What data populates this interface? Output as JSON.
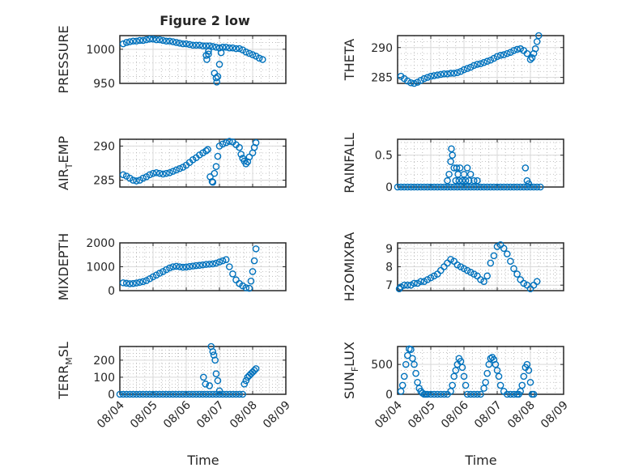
{
  "figure": {
    "title": "Figure 2 low",
    "xlabel": "Time"
  },
  "colors": {
    "series": "#0072BD",
    "axes": "#262626"
  },
  "chart_data": [
    {
      "type": "scatter",
      "ylabel": "PRESSURE",
      "ylim": [
        950,
        1020
      ],
      "yticks": [
        950,
        1000
      ],
      "xlim": [
        "08/04",
        "08/09"
      ],
      "xticks": [
        "08/04",
        "08/05",
        "08/06",
        "08/07",
        "08/08",
        "08/09"
      ],
      "grid": true,
      "minor_grid": true,
      "x": [
        4.1,
        4.2,
        4.3,
        4.4,
        4.5,
        4.6,
        4.7,
        4.8,
        4.9,
        5.0,
        5.1,
        5.2,
        5.3,
        5.4,
        5.5,
        5.6,
        5.7,
        5.8,
        5.9,
        6.0,
        6.1,
        6.2,
        6.3,
        6.4,
        6.5,
        6.6,
        6.7,
        6.8,
        6.9,
        7.0,
        7.1,
        7.2,
        7.3,
        7.4,
        7.5,
        7.6,
        7.7,
        7.8,
        7.9,
        8.0,
        8.1,
        8.2,
        8.3,
        6.6,
        6.62,
        6.67,
        6.67,
        6.85,
        6.9,
        6.92,
        6.95,
        7.0,
        7.05,
        7.1
      ],
      "y": [
        1008,
        1010,
        1011,
        1012,
        1012,
        1013,
        1013,
        1014,
        1015,
        1015,
        1014,
        1014,
        1013,
        1012,
        1012,
        1011,
        1010,
        1009,
        1008,
        1008,
        1007,
        1006,
        1006,
        1006,
        1005,
        1005,
        1005,
        1004,
        1003,
        1002,
        1003,
        1003,
        1002,
        1002,
        1001,
        1001,
        999,
        996,
        994,
        992,
        990,
        987,
        985,
        991,
        985,
        997,
        993,
        965,
        958,
        952,
        960,
        978,
        995,
        1003
      ]
    },
    {
      "type": "scatter",
      "ylabel": "THETA",
      "ylim": [
        284,
        292
      ],
      "yticks": [
        285,
        290
      ],
      "xlim": [
        "08/04",
        "08/09"
      ],
      "xticks": [
        "08/04",
        "08/05",
        "08/06",
        "08/07",
        "08/08",
        "08/09"
      ],
      "grid": true,
      "minor_grid": true,
      "x": [
        4.1,
        4.2,
        4.3,
        4.4,
        4.5,
        4.6,
        4.7,
        4.8,
        4.9,
        5.0,
        5.1,
        5.2,
        5.3,
        5.4,
        5.5,
        5.6,
        5.7,
        5.8,
        5.9,
        6.0,
        6.1,
        6.2,
        6.3,
        6.4,
        6.5,
        6.6,
        6.7,
        6.8,
        6.9,
        7.0,
        7.1,
        7.2,
        7.3,
        7.4,
        7.5,
        7.6,
        7.7,
        7.8,
        7.9,
        8.0,
        8.05,
        8.1,
        8.15,
        8.2,
        8.25
      ],
      "y": [
        285.2,
        284.8,
        284.4,
        284.1,
        284.0,
        284.2,
        284.5,
        284.8,
        285.0,
        285.2,
        285.3,
        285.4,
        285.5,
        285.6,
        285.6,
        285.7,
        285.7,
        285.8,
        286.0,
        286.3,
        286.5,
        286.7,
        287.0,
        287.2,
        287.3,
        287.5,
        287.7,
        287.9,
        288.2,
        288.5,
        288.7,
        288.8,
        289.0,
        289.2,
        289.5,
        289.7,
        289.8,
        289.5,
        289.0,
        288.0,
        288.3,
        289.0,
        289.8,
        291.0,
        292.0
      ]
    },
    {
      "type": "scatter",
      "ylabel": "AIR_TEMP",
      "ylim": [
        284,
        291
      ],
      "yticks": [
        285,
        290
      ],
      "xlim": [
        "08/04",
        "08/09"
      ],
      "xticks": [
        "08/04",
        "08/05",
        "08/06",
        "08/07",
        "08/08",
        "08/09"
      ],
      "grid": true,
      "minor_grid": true,
      "x": [
        4.1,
        4.2,
        4.3,
        4.4,
        4.5,
        4.6,
        4.7,
        4.8,
        4.9,
        5.0,
        5.1,
        5.2,
        5.3,
        5.4,
        5.5,
        5.6,
        5.7,
        5.8,
        5.9,
        6.0,
        6.1,
        6.2,
        6.3,
        6.4,
        6.5,
        6.6,
        6.65,
        6.72,
        6.78,
        6.8,
        6.85,
        6.9,
        6.95,
        7.0,
        7.1,
        7.2,
        7.3,
        7.4,
        7.5,
        7.6,
        7.65,
        7.7,
        7.75,
        7.8,
        7.85,
        7.9,
        8.0,
        8.05,
        8.1
      ],
      "y": [
        285.8,
        285.6,
        285.3,
        285.0,
        284.9,
        285.0,
        285.3,
        285.5,
        285.8,
        286.0,
        286.1,
        286.0,
        285.9,
        286.0,
        286.1,
        286.3,
        286.5,
        286.7,
        286.9,
        287.2,
        287.6,
        288.0,
        288.3,
        288.7,
        289.0,
        289.3,
        289.5,
        285.5,
        284.8,
        284.7,
        286.0,
        287.0,
        288.5,
        290.0,
        290.3,
        290.5,
        290.7,
        290.6,
        290.2,
        289.8,
        288.8,
        288.2,
        287.8,
        287.4,
        287.7,
        288.4,
        289.0,
        289.8,
        290.5
      ]
    },
    {
      "type": "scatter",
      "ylabel": "RAINFALL",
      "ylim": [
        0,
        0.75
      ],
      "yticks": [
        0,
        0.5
      ],
      "xlim": [
        "08/04",
        "08/09"
      ],
      "xticks": [
        "08/04",
        "08/05",
        "08/06",
        "08/07",
        "08/08",
        "08/09"
      ],
      "grid": true,
      "minor_grid": true,
      "x": [
        4.0,
        4.1,
        4.2,
        4.3,
        4.4,
        4.5,
        4.6,
        4.7,
        4.8,
        4.9,
        5.0,
        5.1,
        5.2,
        5.3,
        5.4,
        5.5,
        5.6,
        5.7,
        5.8,
        5.9,
        6.0,
        6.1,
        6.2,
        6.3,
        6.4,
        6.5,
        6.6,
        6.7,
        6.8,
        6.9,
        7.0,
        7.1,
        7.2,
        7.3,
        7.4,
        7.5,
        7.6,
        7.7,
        7.8,
        7.9,
        8.0,
        8.1,
        8.2,
        8.3,
        5.5,
        5.55,
        5.6,
        5.62,
        5.65,
        5.7,
        5.75,
        5.78,
        5.82,
        5.85,
        5.88,
        5.95,
        6.0,
        6.05,
        6.1,
        6.15,
        6.2,
        6.3,
        6.4,
        7.85,
        7.9,
        7.95
      ],
      "y": [
        0,
        0,
        0,
        0,
        0,
        0,
        0,
        0,
        0,
        0,
        0,
        0,
        0,
        0,
        0,
        0,
        0,
        0,
        0,
        0,
        0,
        0,
        0,
        0,
        0,
        0,
        0,
        0,
        0,
        0,
        0,
        0,
        0,
        0,
        0,
        0,
        0,
        0,
        0,
        0,
        0,
        0,
        0,
        0,
        0.1,
        0.2,
        0.4,
        0.6,
        0.5,
        0.3,
        0.1,
        0.3,
        0.2,
        0.1,
        0.3,
        0.1,
        0.2,
        0.1,
        0.3,
        0.1,
        0.2,
        0.1,
        0.1,
        0.3,
        0.1,
        0.05
      ]
    },
    {
      "type": "scatter",
      "ylabel": "MIXDEPTH",
      "ylim": [
        0,
        2000
      ],
      "yticks": [
        0,
        1000,
        2000
      ],
      "xlim": [
        "08/04",
        "08/09"
      ],
      "xticks": [
        "08/04",
        "08/05",
        "08/06",
        "08/07",
        "08/08",
        "08/09"
      ],
      "grid": true,
      "minor_grid": true,
      "x": [
        4.1,
        4.2,
        4.3,
        4.4,
        4.5,
        4.6,
        4.7,
        4.8,
        4.9,
        5.0,
        5.1,
        5.2,
        5.3,
        5.4,
        5.5,
        5.6,
        5.7,
        5.8,
        5.9,
        6.0,
        6.1,
        6.2,
        6.3,
        6.4,
        6.5,
        6.6,
        6.7,
        6.8,
        6.9,
        7.0,
        7.1,
        7.2,
        7.3,
        7.4,
        7.5,
        7.6,
        7.7,
        7.8,
        7.9,
        7.95,
        8.0,
        8.05,
        8.1
      ],
      "y": [
        330,
        310,
        290,
        300,
        320,
        350,
        380,
        420,
        500,
        580,
        650,
        730,
        800,
        880,
        950,
        1000,
        1020,
        1000,
        980,
        990,
        1010,
        1030,
        1050,
        1060,
        1080,
        1100,
        1110,
        1120,
        1150,
        1200,
        1250,
        1300,
        1000,
        700,
        450,
        300,
        200,
        120,
        100,
        400,
        800,
        1250,
        1750
      ]
    },
    {
      "type": "scatter",
      "ylabel": "H2OMIXRA",
      "ylim": [
        6.7,
        9.3
      ],
      "yticks": [
        7,
        8,
        9
      ],
      "xlim": [
        "08/04",
        "08/09"
      ],
      "xticks": [
        "08/04",
        "08/05",
        "08/06",
        "08/07",
        "08/08",
        "08/09"
      ],
      "grid": true,
      "minor_grid": true,
      "x": [
        4.05,
        4.1,
        4.2,
        4.3,
        4.4,
        4.5,
        4.6,
        4.7,
        4.8,
        4.9,
        5.0,
        5.1,
        5.2,
        5.3,
        5.4,
        5.5,
        5.6,
        5.7,
        5.8,
        5.9,
        6.0,
        6.1,
        6.2,
        6.3,
        6.4,
        6.5,
        6.6,
        6.7,
        6.8,
        6.9,
        7.0,
        7.1,
        7.2,
        7.3,
        7.4,
        7.5,
        7.6,
        7.7,
        7.8,
        7.9,
        8.0,
        8.1,
        8.2
      ],
      "y": [
        6.8,
        6.9,
        7.0,
        7.0,
        7.0,
        7.1,
        7.1,
        7.2,
        7.2,
        7.3,
        7.4,
        7.5,
        7.6,
        7.8,
        8.0,
        8.2,
        8.4,
        8.3,
        8.1,
        8.0,
        7.9,
        7.8,
        7.7,
        7.6,
        7.5,
        7.3,
        7.2,
        7.5,
        8.2,
        8.6,
        9.1,
        9.2,
        9.0,
        8.7,
        8.3,
        7.9,
        7.6,
        7.3,
        7.1,
        7.0,
        6.8,
        7.0,
        7.2
      ]
    },
    {
      "type": "scatter",
      "ylabel": "TERR_MSL",
      "ylim": [
        0,
        280
      ],
      "yticks": [
        0,
        100,
        200
      ],
      "xlim": [
        "08/04",
        "08/09"
      ],
      "xticks": [
        "08/04",
        "08/05",
        "08/06",
        "08/07",
        "08/08",
        "08/09"
      ],
      "grid": true,
      "minor_grid": true,
      "x": [
        4.0,
        4.1,
        4.2,
        4.3,
        4.4,
        4.5,
        4.6,
        4.7,
        4.8,
        4.9,
        5.0,
        5.1,
        5.2,
        5.3,
        5.4,
        5.5,
        5.6,
        5.7,
        5.8,
        5.9,
        6.0,
        6.1,
        6.2,
        6.3,
        6.4,
        6.5,
        6.6,
        6.7,
        6.8,
        6.9,
        7.0,
        7.1,
        7.2,
        7.3,
        7.4,
        7.5,
        7.6,
        7.7,
        6.52,
        6.58,
        6.7,
        6.75,
        6.8,
        6.83,
        6.87,
        6.9,
        6.95,
        7.0,
        7.75,
        7.8,
        7.85,
        7.9,
        7.95,
        8.0,
        8.05,
        8.1
      ],
      "y": [
        0,
        0,
        0,
        0,
        0,
        0,
        0,
        0,
        0,
        0,
        0,
        0,
        0,
        0,
        0,
        0,
        0,
        0,
        0,
        0,
        0,
        0,
        0,
        0,
        0,
        0,
        0,
        0,
        0,
        0,
        0,
        0,
        0,
        0,
        0,
        0,
        0,
        0,
        100,
        60,
        50,
        280,
        250,
        230,
        200,
        120,
        80,
        20,
        60,
        80,
        100,
        110,
        120,
        130,
        140,
        150
      ]
    },
    {
      "type": "scatter",
      "ylabel": "SUN_FLUX",
      "ylim": [
        0,
        800
      ],
      "yticks": [
        0,
        500
      ],
      "xlim": [
        "08/04",
        "08/09"
      ],
      "xticks": [
        "08/04",
        "08/05",
        "08/06",
        "08/07",
        "08/08",
        "08/09"
      ],
      "grid": true,
      "minor_grid": true,
      "x": [
        4.1,
        4.15,
        4.2,
        4.25,
        4.3,
        4.35,
        4.4,
        4.45,
        4.5,
        4.55,
        4.6,
        4.65,
        4.7,
        4.75,
        4.8,
        4.85,
        4.9,
        5.0,
        5.1,
        5.2,
        5.3,
        5.4,
        5.5,
        5.6,
        5.65,
        5.7,
        5.75,
        5.8,
        5.85,
        5.9,
        5.95,
        6.0,
        6.05,
        6.1,
        6.2,
        6.3,
        6.4,
        6.5,
        6.6,
        6.65,
        6.7,
        6.75,
        6.8,
        6.85,
        6.9,
        6.95,
        7.0,
        7.05,
        7.1,
        7.2,
        7.3,
        7.4,
        7.5,
        7.6,
        7.65,
        7.7,
        7.75,
        7.8,
        7.85,
        7.9,
        7.95,
        8.0,
        8.05,
        8.1
      ],
      "y": [
        50,
        150,
        300,
        500,
        650,
        760,
        750,
        600,
        500,
        350,
        200,
        100,
        50,
        20,
        0,
        0,
        0,
        0,
        0,
        0,
        0,
        0,
        0,
        50,
        150,
        300,
        400,
        500,
        600,
        550,
        450,
        300,
        150,
        0,
        0,
        0,
        0,
        0,
        100,
        200,
        350,
        500,
        600,
        620,
        580,
        500,
        400,
        300,
        150,
        50,
        0,
        0,
        0,
        0,
        0,
        50,
        150,
        300,
        450,
        500,
        400,
        200,
        0,
        0
      ]
    }
  ]
}
